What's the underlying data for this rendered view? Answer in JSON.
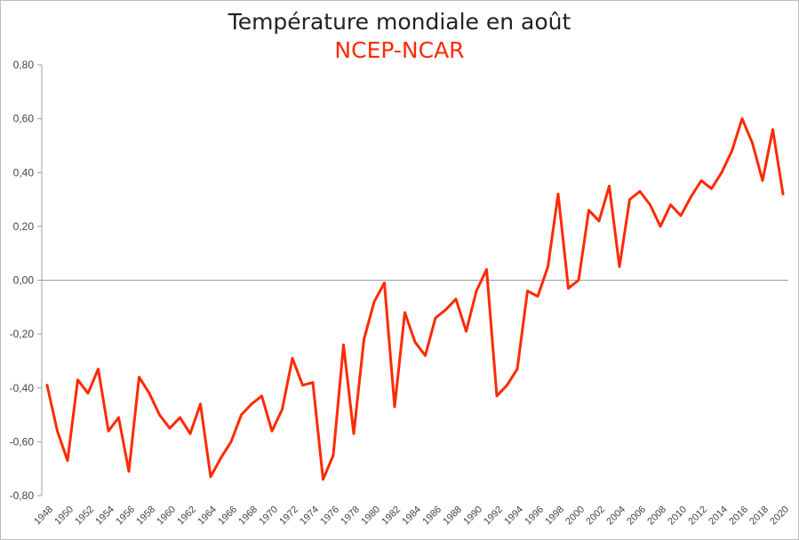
{
  "chart_data": {
    "type": "line",
    "title": "Température mondiale en août",
    "subtitle": "NCEP-NCAR",
    "xlabel": "",
    "ylabel": "",
    "ylim": [
      -0.8,
      0.8
    ],
    "yticks": [
      "-0,80",
      "-0,60",
      "-0,40",
      "-0,20",
      "0,00",
      "0,20",
      "0,40",
      "0,60",
      "0,80"
    ],
    "grid": false,
    "line_color": "#ff2a00",
    "x": [
      1948,
      1949,
      1950,
      1951,
      1952,
      1953,
      1954,
      1955,
      1956,
      1957,
      1958,
      1959,
      1960,
      1961,
      1962,
      1963,
      1964,
      1965,
      1966,
      1967,
      1968,
      1969,
      1970,
      1971,
      1972,
      1973,
      1974,
      1975,
      1976,
      1977,
      1978,
      1979,
      1980,
      1981,
      1982,
      1983,
      1984,
      1985,
      1986,
      1987,
      1988,
      1989,
      1990,
      1991,
      1992,
      1993,
      1994,
      1995,
      1996,
      1997,
      1998,
      1999,
      2000,
      2001,
      2002,
      2003,
      2004,
      2005,
      2006,
      2007,
      2008,
      2009,
      2010,
      2011,
      2012,
      2013,
      2014,
      2015,
      2016,
      2017,
      2018,
      2019,
      2020
    ],
    "xtick_labels": [
      "1948",
      "1950",
      "1952",
      "1954",
      "1956",
      "1958",
      "1960",
      "1962",
      "1964",
      "1966",
      "1968",
      "1970",
      "1972",
      "1974",
      "1976",
      "1978",
      "1980",
      "1982",
      "1984",
      "1986",
      "1988",
      "1990",
      "1992",
      "1994",
      "1996",
      "1998",
      "2000",
      "2002",
      "2004",
      "2006",
      "2008",
      "2010",
      "2012",
      "2014",
      "2016",
      "2018",
      "2020"
    ],
    "series": [
      {
        "values": [
          -0.39,
          -0.56,
          -0.67,
          -0.37,
          -0.42,
          -0.33,
          -0.56,
          -0.51,
          -0.71,
          -0.36,
          -0.42,
          -0.5,
          -0.55,
          -0.51,
          -0.57,
          -0.46,
          -0.73,
          -0.66,
          -0.6,
          -0.5,
          -0.46,
          -0.43,
          -0.56,
          -0.48,
          -0.29,
          -0.39,
          -0.38,
          -0.74,
          -0.65,
          -0.24,
          -0.57,
          -0.22,
          -0.08,
          -0.01,
          -0.47,
          -0.12,
          -0.23,
          -0.28,
          -0.14,
          -0.11,
          -0.07,
          -0.19,
          -0.04,
          0.04,
          -0.43,
          -0.39,
          -0.33,
          -0.04,
          -0.06,
          0.05,
          0.32,
          -0.03,
          0.0,
          0.26,
          0.22,
          0.35,
          0.05,
          0.3,
          0.33,
          0.28,
          0.2,
          0.28,
          0.24,
          0.31,
          0.37,
          0.34,
          0.4,
          0.48,
          0.6,
          0.51,
          0.37,
          0.56,
          0.32
        ]
      }
    ]
  }
}
